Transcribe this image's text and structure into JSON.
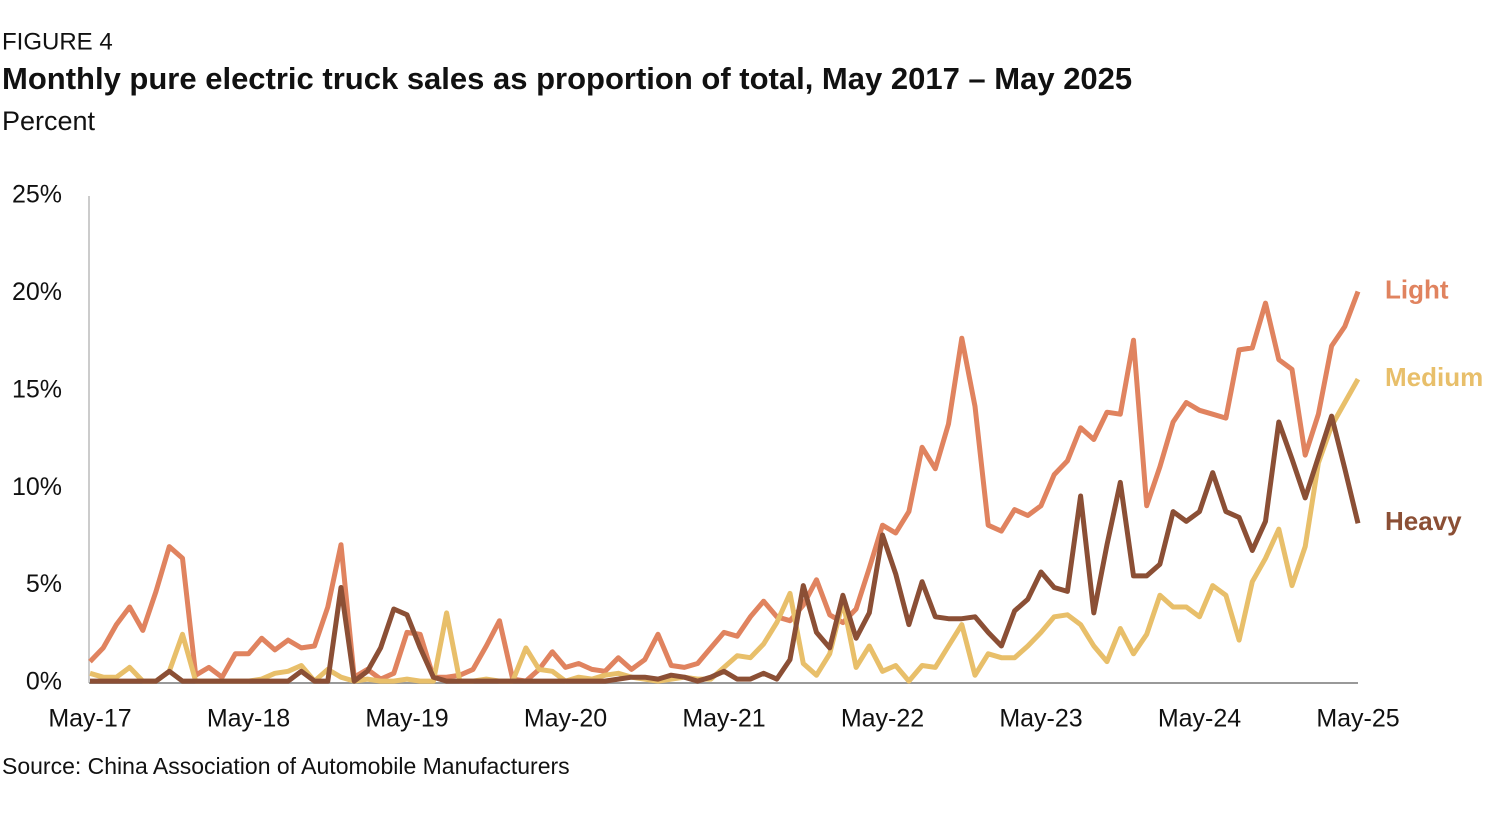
{
  "chart_data": {
    "type": "line",
    "figure_label": "FIGURE 4",
    "title": "Monthly pure electric truck sales as proportion of total, May 2017 – May 2025",
    "subtitle": "Percent",
    "source": "Source:  China Association of Automobile Manufacturers",
    "categories": [
      "May-17",
      null,
      null,
      null,
      null,
      null,
      null,
      null,
      null,
      null,
      null,
      null,
      "May-18",
      null,
      null,
      null,
      null,
      null,
      null,
      null,
      null,
      null,
      null,
      null,
      "May-19",
      null,
      null,
      null,
      null,
      null,
      null,
      null,
      null,
      null,
      null,
      null,
      "May-20",
      null,
      null,
      null,
      null,
      null,
      null,
      null,
      null,
      null,
      null,
      null,
      "May-21",
      null,
      null,
      null,
      null,
      null,
      null,
      null,
      null,
      null,
      null,
      null,
      "May-22",
      null,
      null,
      null,
      null,
      null,
      null,
      null,
      null,
      null,
      null,
      null,
      "May-23",
      null,
      null,
      null,
      null,
      null,
      null,
      null,
      null,
      null,
      null,
      null,
      "May-24",
      null,
      null,
      null,
      null,
      null,
      null,
      null,
      null,
      null,
      null,
      null,
      "May-25"
    ],
    "ylim": [
      0,
      25
    ],
    "yticks": [
      {
        "value": 0,
        "label": "0%"
      },
      {
        "value": 5,
        "label": "5%"
      },
      {
        "value": 10,
        "label": "10%"
      },
      {
        "value": 15,
        "label": "15%"
      },
      {
        "value": 20,
        "label": "20%"
      },
      {
        "value": 25,
        "label": "25%"
      }
    ],
    "grid": false,
    "series": [
      {
        "name": "Light",
        "color": "#e0835f",
        "values": [
          1.1,
          1.8,
          3.0,
          3.9,
          2.7,
          4.7,
          7.0,
          6.4,
          0.4,
          0.8,
          0.3,
          1.5,
          1.5,
          2.3,
          1.7,
          2.2,
          1.8,
          1.9,
          3.9,
          7.1,
          0.3,
          0.7,
          0.2,
          0.5,
          2.6,
          2.5,
          0.3,
          0.3,
          0.4,
          0.7,
          1.9,
          3.2,
          0.2,
          0.1,
          0.7,
          1.6,
          0.8,
          1.0,
          0.7,
          0.6,
          1.3,
          0.7,
          1.2,
          2.5,
          0.9,
          0.8,
          1.0,
          1.8,
          2.6,
          2.4,
          3.4,
          4.2,
          3.4,
          3.2,
          4.0,
          5.3,
          3.5,
          3.1,
          3.8,
          5.9,
          8.1,
          7.7,
          8.8,
          12.1,
          11.0,
          13.3,
          17.7,
          14.2,
          8.1,
          7.8,
          8.9,
          8.6,
          9.1,
          10.7,
          11.4,
          13.1,
          12.5,
          13.9,
          13.8,
          17.6,
          9.1,
          11.1,
          13.4,
          14.4,
          14.0,
          13.8,
          13.6,
          17.1,
          17.2,
          19.5,
          16.6,
          16.1,
          11.7,
          13.8,
          17.3,
          18.3,
          20.1
        ]
      },
      {
        "name": "Medium",
        "color": "#e8bf6a",
        "values": [
          0.5,
          0.3,
          0.3,
          0.8,
          0.1,
          0.1,
          0.6,
          2.5,
          0.1,
          0.1,
          0.1,
          0.1,
          0.1,
          0.2,
          0.5,
          0.6,
          0.9,
          0.1,
          0.7,
          0.3,
          0.1,
          0.2,
          0.1,
          0.1,
          0.2,
          0.1,
          0.1,
          3.6,
          0.1,
          0.1,
          0.2,
          0.1,
          0.1,
          1.8,
          0.7,
          0.6,
          0.1,
          0.3,
          0.2,
          0.4,
          0.5,
          0.3,
          0.2,
          0.1,
          0.2,
          0.3,
          0.2,
          0.2,
          0.8,
          1.4,
          1.3,
          2.0,
          3.1,
          4.6,
          1.0,
          0.4,
          1.5,
          4.2,
          0.8,
          1.9,
          0.6,
          0.9,
          0.1,
          0.9,
          0.8,
          1.9,
          3.0,
          0.4,
          1.5,
          1.3,
          1.3,
          1.9,
          2.6,
          3.4,
          3.5,
          3.0,
          1.9,
          1.1,
          2.8,
          1.5,
          2.5,
          4.5,
          3.9,
          3.9,
          3.4,
          5.0,
          4.5,
          2.2,
          5.2,
          6.4,
          7.9,
          5.0,
          7.0,
          11.3,
          13.2,
          14.4,
          15.6
        ]
      },
      {
        "name": "Heavy",
        "color": "#8b4f35",
        "values": [
          0.1,
          0.1,
          0.1,
          0.1,
          0.1,
          0.1,
          0.6,
          0.1,
          0.1,
          0.1,
          0.1,
          0.1,
          0.1,
          0.1,
          0.1,
          0.1,
          0.6,
          0.1,
          0.1,
          4.9,
          0.1,
          0.6,
          1.8,
          3.8,
          3.5,
          1.8,
          0.3,
          0.1,
          0.1,
          0.1,
          0.1,
          0.1,
          0.1,
          0.1,
          0.1,
          0.1,
          0.1,
          0.1,
          0.1,
          0.1,
          0.2,
          0.3,
          0.3,
          0.2,
          0.4,
          0.3,
          0.1,
          0.3,
          0.6,
          0.2,
          0.2,
          0.5,
          0.2,
          1.2,
          5.0,
          2.6,
          1.8,
          4.5,
          2.3,
          3.6,
          7.6,
          5.6,
          3.0,
          5.2,
          3.4,
          3.3,
          3.3,
          3.4,
          2.6,
          1.9,
          3.7,
          4.3,
          5.7,
          4.9,
          4.7,
          9.6,
          3.6,
          7.1,
          10.3,
          5.5,
          5.5,
          6.1,
          8.8,
          8.3,
          8.8,
          10.8,
          8.8,
          8.5,
          6.8,
          8.3,
          13.4,
          11.5,
          9.5,
          11.6,
          13.7,
          11.0,
          8.2
        ]
      }
    ]
  }
}
